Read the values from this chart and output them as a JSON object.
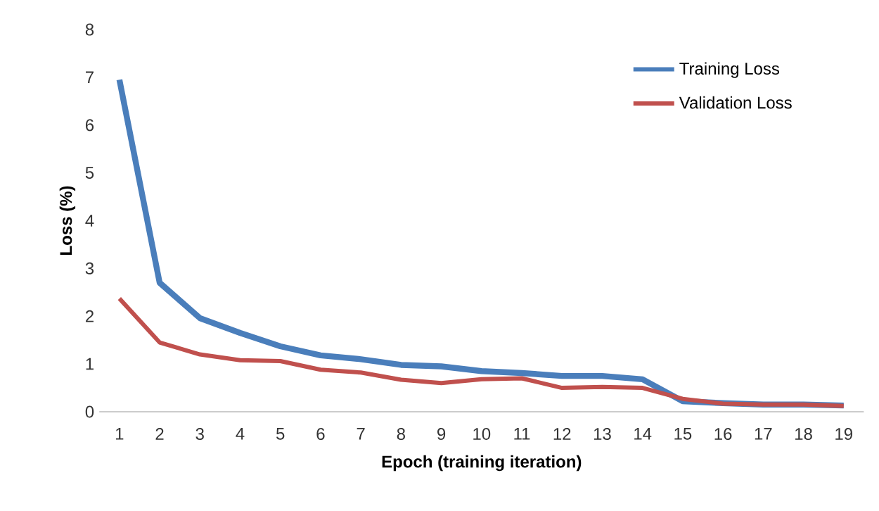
{
  "chart_data": {
    "type": "line",
    "xlabel": "Epoch (training iteration)",
    "ylabel": "Loss (%)",
    "categories": [
      "1",
      "2",
      "3",
      "4",
      "5",
      "6",
      "7",
      "8",
      "9",
      "10",
      "11",
      "12",
      "13",
      "14",
      "15",
      "16",
      "17",
      "18",
      "19"
    ],
    "ylim": [
      0,
      8
    ],
    "yticks": [
      0,
      1,
      2,
      3,
      4,
      5,
      6,
      7,
      8
    ],
    "grid": false,
    "legend": "top right",
    "marker": "none",
    "line_style": "solid",
    "series": [
      {
        "name": "Training Loss",
        "color": "#4a7ebb",
        "values": [
          6.95,
          2.7,
          1.96,
          1.65,
          1.37,
          1.18,
          1.1,
          0.98,
          0.95,
          0.85,
          0.81,
          0.75,
          0.75,
          0.68,
          0.22,
          0.18,
          0.15,
          0.15,
          0.13
        ]
      },
      {
        "name": "Validation Loss",
        "color": "#c0504d",
        "values": [
          2.37,
          1.45,
          1.2,
          1.08,
          1.06,
          0.88,
          0.82,
          0.67,
          0.6,
          0.68,
          0.7,
          0.5,
          0.52,
          0.5,
          0.27,
          0.17,
          0.15,
          0.15,
          0.12
        ]
      }
    ]
  }
}
